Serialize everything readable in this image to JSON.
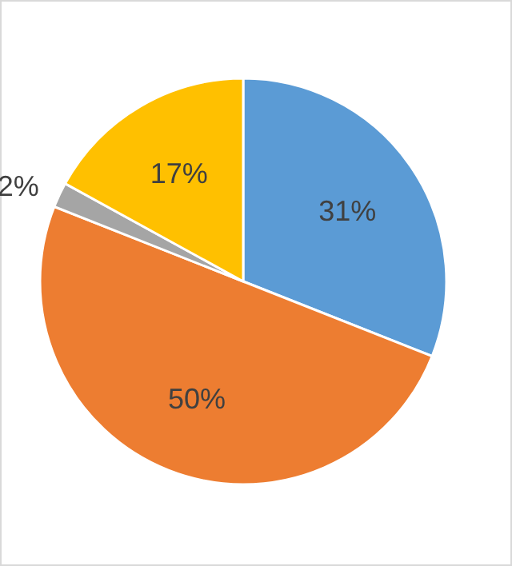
{
  "chart_data": {
    "type": "pie",
    "categories": [
      null,
      null,
      null,
      null
    ],
    "values": [
      31,
      50,
      2,
      17
    ],
    "colors": [
      "#5b9bd5",
      "#ed7d31",
      "#a5a5a5",
      "#ffc000"
    ],
    "value_labels": [
      "31%",
      "50%",
      "2%",
      "17%"
    ]
  }
}
